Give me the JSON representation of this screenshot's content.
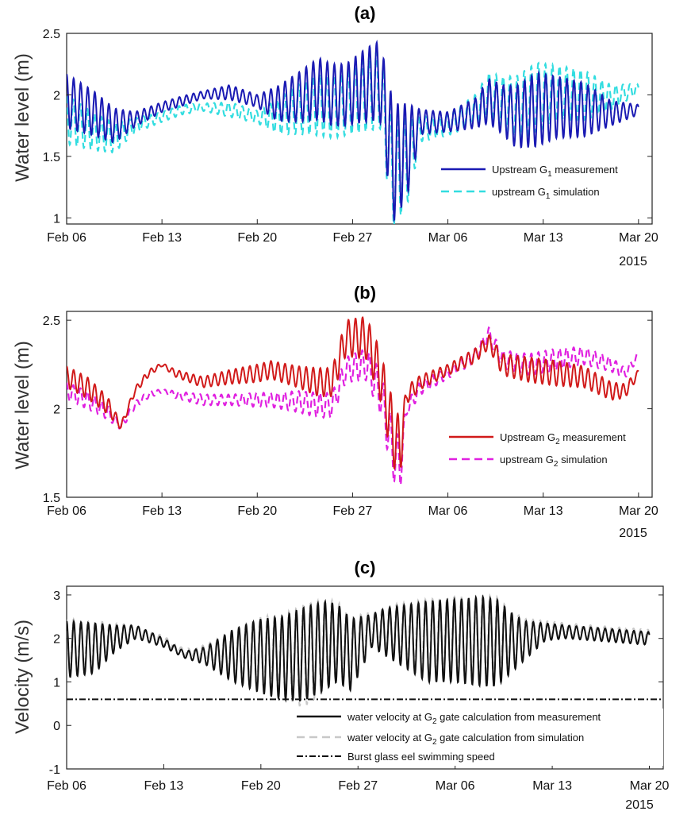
{
  "chart_data": [
    {
      "panel": "(a)",
      "type": "line",
      "ylabel": "Water level (m)",
      "xlabel": "",
      "year_label": "2015",
      "x_ticks": [
        "Feb 06",
        "Feb 13",
        "Feb 20",
        "Feb 27",
        "Mar 06",
        "Mar 13",
        "Mar 20"
      ],
      "y_ticks": [
        "1",
        "1.5",
        "2",
        "2.5"
      ],
      "ylim": [
        0.95,
        2.5
      ],
      "legend_position": "lower-right",
      "series": [
        {
          "name": "Upstream G1 measurement",
          "color": "#1a1ab3",
          "dash": "solid",
          "day": [
            0,
            2,
            3.5,
            5,
            7,
            8.5,
            10,
            12,
            14,
            15.5,
            17,
            18.5,
            19.5,
            20.5,
            22,
            23,
            24,
            25,
            26,
            28,
            30,
            31,
            32,
            33,
            34.5,
            36,
            38,
            40,
            42,
            43,
            44,
            45,
            46,
            47
          ],
          "mid": [
            1.95,
            1.85,
            1.75,
            1.8,
            1.9,
            1.95,
            2.0,
            2.02,
            1.95,
            1.93,
            1.98,
            2.05,
            2.0,
            2.0,
            2.08,
            2.12,
            1.45,
            1.55,
            1.78,
            1.78,
            1.85,
            1.95,
            1.88,
            1.82,
            1.88,
            1.9,
            1.88,
            1.85,
            1.88,
            1.92,
            1.95,
            1.98,
            2.0,
            2.02
          ],
          "amp": [
            0.22,
            0.18,
            0.14,
            0.06,
            0.04,
            0.04,
            0.03,
            0.06,
            0.05,
            0.14,
            0.2,
            0.25,
            0.25,
            0.25,
            0.3,
            0.32,
            0.48,
            0.38,
            0.1,
            0.08,
            0.12,
            0.18,
            0.2,
            0.25,
            0.3,
            0.25,
            0.22,
            0.1,
            0.04,
            0.04,
            0.06,
            0.08,
            0.08,
            0.1
          ],
          "phase": 0
        },
        {
          "name": "upstream G1 simulation",
          "color": "#33dde0",
          "dash": "dashed",
          "day": [
            0,
            2,
            3.5,
            5,
            7,
            8.5,
            10,
            12,
            14,
            15.5,
            17,
            18.5,
            19.5,
            20.5,
            22,
            23,
            24,
            25,
            26,
            28,
            30,
            31,
            32,
            33,
            34.5,
            36,
            38,
            40,
            42,
            43,
            44,
            45,
            46,
            47
          ],
          "mid": [
            1.8,
            1.7,
            1.65,
            1.75,
            1.82,
            1.88,
            1.9,
            1.88,
            1.82,
            1.82,
            1.88,
            1.92,
            1.9,
            1.92,
            2.0,
            2.05,
            1.35,
            1.45,
            1.72,
            1.75,
            1.88,
            2.0,
            1.95,
            1.9,
            1.98,
            2.02,
            2.0,
            1.98,
            2.05,
            2.12,
            2.18,
            2.22,
            2.22,
            2.25
          ],
          "amp": [
            0.2,
            0.15,
            0.12,
            0.06,
            0.04,
            0.04,
            0.03,
            0.06,
            0.05,
            0.14,
            0.2,
            0.25,
            0.25,
            0.25,
            0.3,
            0.32,
            0.42,
            0.35,
            0.1,
            0.08,
            0.12,
            0.18,
            0.2,
            0.25,
            0.28,
            0.22,
            0.2,
            0.1,
            0.04,
            0.04,
            0.05,
            0.05,
            0.06,
            0.05
          ],
          "phase": 0.35
        }
      ]
    },
    {
      "panel": "(b)",
      "type": "line",
      "ylabel": "Water level (m)",
      "xlabel": "",
      "year_label": "2015",
      "x_ticks": [
        "Feb 06",
        "Feb 13",
        "Feb 20",
        "Feb 27",
        "Mar 06",
        "Mar 13",
        "Mar 20"
      ],
      "y_ticks": [
        "1.5",
        "2",
        "2.5"
      ],
      "ylim": [
        1.5,
        2.55
      ],
      "legend_position": "lower-right",
      "series": [
        {
          "name": "Upstream G2 measurement",
          "color": "#d11a1a",
          "dash": "solid",
          "day": [
            0,
            1.5,
            3,
            4,
            5,
            6,
            7,
            8,
            10,
            12,
            14,
            15,
            17,
            18.5,
            19.5,
            20.5,
            22,
            23,
            24,
            24.5,
            25,
            26,
            28,
            30,
            31,
            32,
            34,
            36,
            38,
            40,
            41,
            42,
            44,
            46,
            47
          ],
          "mid": [
            2.18,
            2.12,
            2.02,
            1.9,
            2.1,
            2.2,
            2.25,
            2.2,
            2.15,
            2.18,
            2.2,
            2.22,
            2.18,
            2.15,
            2.15,
            2.4,
            2.4,
            2.2,
            1.85,
            1.78,
            2.08,
            2.15,
            2.22,
            2.3,
            2.38,
            2.25,
            2.22,
            2.2,
            2.18,
            2.1,
            2.1,
            2.2,
            2.22,
            2.22,
            2.2
          ],
          "amp": [
            0.06,
            0.06,
            0.05,
            0.02,
            0.02,
            0.02,
            0.01,
            0.02,
            0.03,
            0.04,
            0.05,
            0.05,
            0.06,
            0.08,
            0.08,
            0.1,
            0.12,
            0.14,
            0.18,
            0.16,
            0.05,
            0.04,
            0.03,
            0.04,
            0.04,
            0.06,
            0.07,
            0.07,
            0.06,
            0.05,
            0.04,
            0.02,
            0.01,
            0.02,
            0.03
          ],
          "phase": 0
        },
        {
          "name": "upstream G2 simulation",
          "color": "#e020e0",
          "dash": "dashed",
          "day": [
            0,
            1.5,
            3,
            4,
            5,
            6,
            7,
            8,
            10,
            12,
            14,
            15,
            17,
            18.5,
            19.5,
            20.5,
            22,
            23,
            24,
            24.5,
            25,
            26,
            28,
            30,
            31,
            32,
            34,
            36,
            38,
            40,
            41,
            42,
            44,
            46,
            47
          ],
          "mid": [
            2.1,
            2.05,
            1.98,
            1.9,
            2.02,
            2.08,
            2.1,
            2.08,
            2.05,
            2.05,
            2.05,
            2.05,
            2.04,
            2.02,
            2.02,
            2.22,
            2.25,
            2.1,
            1.75,
            1.68,
            2.0,
            2.12,
            2.2,
            2.3,
            2.42,
            2.28,
            2.25,
            2.28,
            2.3,
            2.25,
            2.2,
            2.3,
            2.35,
            2.38,
            2.38
          ],
          "amp": [
            0.05,
            0.05,
            0.04,
            0.02,
            0.02,
            0.02,
            0.01,
            0.02,
            0.03,
            0.03,
            0.04,
            0.04,
            0.06,
            0.07,
            0.07,
            0.07,
            0.09,
            0.12,
            0.16,
            0.14,
            0.04,
            0.04,
            0.03,
            0.04,
            0.04,
            0.05,
            0.06,
            0.06,
            0.05,
            0.04,
            0.03,
            0.02,
            0.02,
            0.02,
            0.03
          ],
          "phase": 0.3
        }
      ]
    },
    {
      "panel": "(c)",
      "type": "line",
      "ylabel": "Velocity (m/s)",
      "xlabel": "",
      "year_label": "2015",
      "x_ticks": [
        "Feb 06",
        "Feb 13",
        "Feb 20",
        "Feb 27",
        "Mar 06",
        "Mar 13",
        "Mar 20"
      ],
      "y_ticks": [
        "-1",
        "0",
        "1",
        "2",
        "3"
      ],
      "ylim": [
        -1,
        3.2
      ],
      "legend_position": "bottom",
      "threshold": {
        "name": "Burst glass eel swimming speed",
        "value": 0.6,
        "color": "#111111"
      },
      "series": [
        {
          "name": "water velocity at G2 gate calculation from measurement",
          "color": "#111111",
          "dash": "solid",
          "day": [
            0,
            2,
            3.5,
            5,
            7,
            8.5,
            10,
            12,
            14,
            15.5,
            17,
            18.5,
            19.5,
            20.5,
            22,
            23,
            24,
            25,
            26,
            28,
            30,
            31,
            32,
            33,
            34.5,
            36,
            38,
            40,
            42,
            43,
            44,
            45,
            46,
            47
          ],
          "top": [
            2.4,
            2.35,
            2.3,
            2.3,
            2.0,
            1.7,
            1.8,
            2.2,
            2.45,
            2.5,
            2.7,
            2.85,
            2.8,
            2.45,
            2.55,
            2.7,
            2.75,
            2.8,
            2.85,
            2.9,
            2.95,
            2.9,
            2.6,
            2.4,
            2.35,
            2.3,
            2.25,
            2.2,
            2.15,
            2.1,
            2.1,
            2.1,
            2.05,
            2.0
          ],
          "bottom": [
            1.1,
            1.2,
            1.7,
            2.0,
            1.8,
            1.55,
            1.4,
            1.0,
            0.75,
            0.6,
            0.55,
            0.8,
            1.0,
            0.8,
            1.8,
            1.6,
            1.4,
            1.2,
            1.0,
            1.0,
            0.9,
            0.9,
            1.2,
            1.5,
            1.95,
            2.0,
            1.95,
            1.9,
            1.85,
            1.8,
            1.7,
            1.5,
            1.2,
            0.9
          ],
          "phase": 0
        },
        {
          "name": "water velocity at G2 gate calculation from simulation",
          "color": "#c8c8c8",
          "dash": "dashed",
          "day": [
            0,
            2,
            3.5,
            5,
            7,
            8.5,
            10,
            12,
            14,
            15.5,
            17,
            18.5,
            19.5,
            20.5,
            22,
            23,
            24,
            25,
            26,
            28,
            30,
            31,
            32,
            33,
            34.5,
            36,
            38,
            40,
            42,
            43,
            44,
            45,
            46,
            47
          ],
          "top": [
            2.45,
            2.4,
            2.35,
            2.3,
            2.05,
            1.75,
            1.85,
            2.2,
            2.5,
            2.55,
            2.75,
            2.9,
            2.85,
            2.5,
            2.6,
            2.75,
            2.8,
            2.85,
            2.9,
            2.95,
            3.0,
            2.95,
            2.65,
            2.45,
            2.4,
            2.35,
            2.3,
            2.25,
            2.2,
            2.15,
            2.1,
            2.1,
            2.05,
            2.0
          ],
          "bottom": [
            1.2,
            1.3,
            1.8,
            2.05,
            1.85,
            1.6,
            1.5,
            1.1,
            0.85,
            0.7,
            0.4,
            0.75,
            1.1,
            0.9,
            1.85,
            1.7,
            1.5,
            1.3,
            1.1,
            1.1,
            1.0,
            1.0,
            1.3,
            1.6,
            2.0,
            2.05,
            2.0,
            1.95,
            1.9,
            1.85,
            1.75,
            1.55,
            1.3,
            1.0
          ],
          "phase": 0.25
        }
      ]
    }
  ],
  "legend_labels": {
    "a": [
      "Upstream G",
      "1",
      " measurement",
      "upstream G",
      "1",
      " simulation"
    ],
    "b": [
      "Upstream G",
      "2",
      " measurement",
      "upstream G",
      "2",
      " simulation"
    ],
    "c": [
      "water velocity at G",
      "2",
      " gate calculation from measurement",
      "water velocity at G",
      "2",
      " gate calculation from simulation",
      "Burst glass eel swimming speed"
    ]
  }
}
